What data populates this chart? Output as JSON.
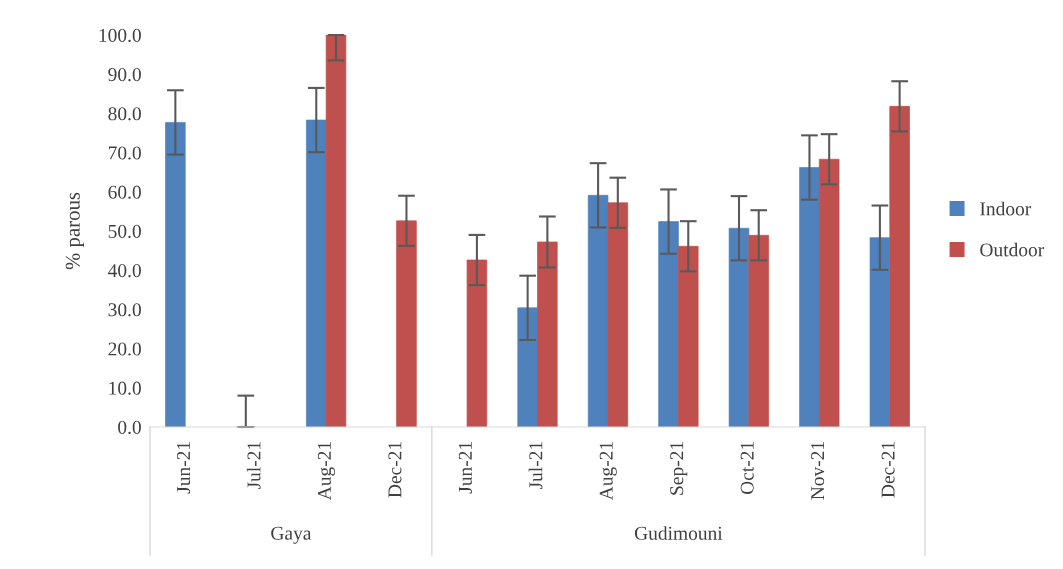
{
  "chart_data": {
    "type": "bar",
    "ylabel": "% parous",
    "categories": [
      "Jun-21",
      "Jul-21",
      "Aug-21",
      "Dec-21",
      "Jun-21",
      "Jul-21",
      "Aug-21",
      "Sep-21",
      "Oct-21",
      "Nov-21",
      "Dec-21"
    ],
    "annotations": [
      "Gaya",
      "Gudimouni"
    ],
    "series": [
      {
        "name": "Indoor",
        "color": "#4f81bd",
        "values": [
          77.7,
          0,
          78.3,
          null,
          null,
          30.4,
          59.1,
          52.4,
          50.7,
          66.2,
          48.3
        ],
        "errors": [
          8.2,
          [
            0,
            8.0
          ],
          8.2,
          null,
          null,
          8.2,
          8.2,
          8.2,
          8.2,
          8.2,
          8.2
        ]
      },
      {
        "name": "Outdoor",
        "color": "#c0504d",
        "values": [
          null,
          null,
          100,
          52.6,
          42.6,
          47.2,
          57.2,
          46.1,
          48.9,
          68.3,
          81.8
        ],
        "errors": [
          null,
          null,
          [
            93.5,
            100
          ],
          6.4,
          6.4,
          6.5,
          6.4,
          6.4,
          6.4,
          6.4,
          6.4
        ]
      }
    ],
    "ylim": [
      0,
      100
    ],
    "yticks": [
      {
        "value": 0,
        "label": "0.0"
      },
      {
        "value": 10,
        "label": "10.0"
      },
      {
        "value": 20,
        "label": "20.0"
      },
      {
        "value": 30,
        "label": "30.0"
      },
      {
        "value": 40,
        "label": "40.0"
      },
      {
        "value": 50,
        "label": "50.0"
      },
      {
        "value": 60,
        "label": "60.0"
      },
      {
        "value": 70,
        "label": "70.0"
      },
      {
        "value": 80,
        "label": "80.0"
      },
      {
        "value": 90,
        "label": "90.0"
      },
      {
        "value": 100,
        "label": "100.0"
      }
    ],
    "legend": "right",
    "grid": false
  }
}
